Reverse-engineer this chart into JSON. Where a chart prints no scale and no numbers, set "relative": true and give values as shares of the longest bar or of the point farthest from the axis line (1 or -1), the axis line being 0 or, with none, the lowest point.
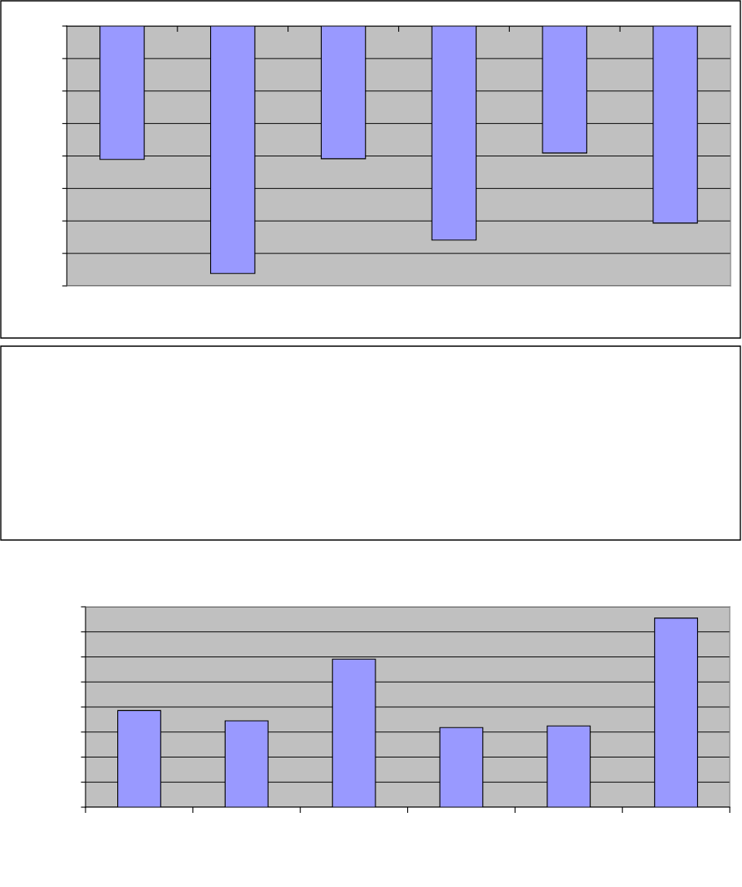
{
  "chart_data": [
    {
      "type": "bar",
      "relative": true,
      "categories": [
        null,
        null,
        null,
        null,
        null,
        null
      ],
      "color": "#9999ff",
      "grid": "y",
      "values": [
        -0.539,
        -1,
        -0.536,
        -0.865,
        -0.513,
        -0.796
      ]
    },
    {
      "type": "bar",
      "relative": true,
      "categories": [
        null,
        null,
        null,
        null,
        null,
        null
      ],
      "color": "#9999ff",
      "grid": "y",
      "values": [
        0.511,
        0.457,
        0.783,
        0.421,
        0.43,
        1
      ]
    }
  ]
}
